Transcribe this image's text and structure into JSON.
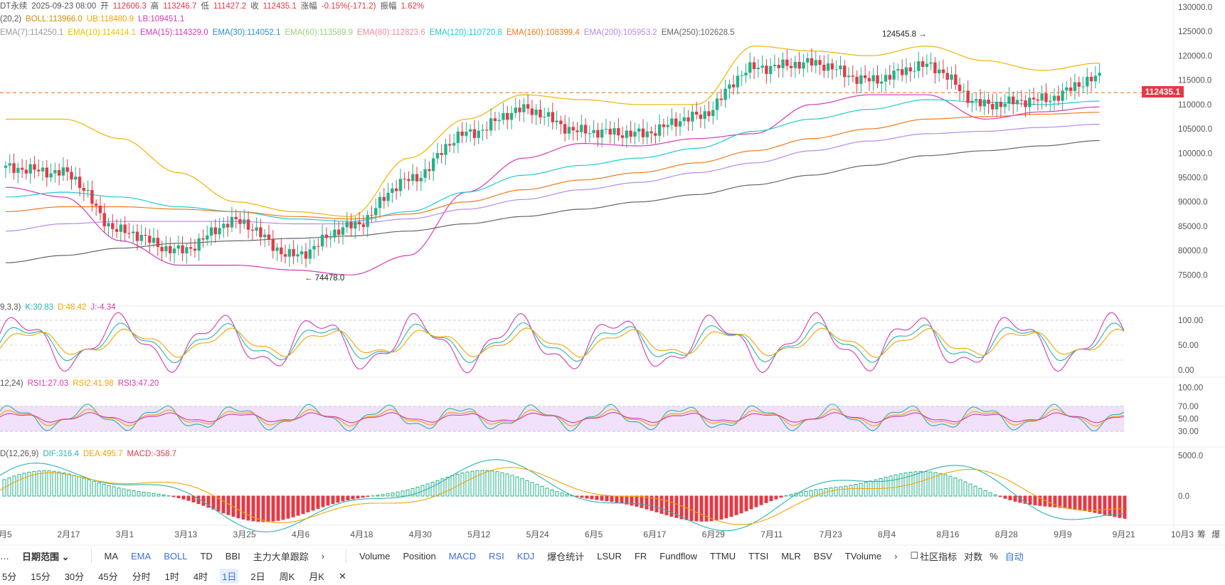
{
  "header": {
    "line1": [
      {
        "text": "DT永续",
        "color": "#555"
      },
      {
        "text": "2025-09-23 08:00",
        "color": "#555"
      },
      {
        "text": "开",
        "color": "#555"
      },
      {
        "text": "112606.3",
        "color": "#e53945"
      },
      {
        "text": "高",
        "color": "#555"
      },
      {
        "text": "113246.7",
        "color": "#e53945"
      },
      {
        "text": "低",
        "color": "#555"
      },
      {
        "text": "111427.2",
        "color": "#e53945"
      },
      {
        "text": "收",
        "color": "#555"
      },
      {
        "text": "112435.1",
        "color": "#e53945"
      },
      {
        "text": "涨幅",
        "color": "#555"
      },
      {
        "text": "-0.15%(-171.2)",
        "color": "#e53945"
      },
      {
        "text": "振幅",
        "color": "#555"
      },
      {
        "text": "1.62%",
        "color": "#e53945"
      }
    ],
    "line2": [
      {
        "text": "(20,2)",
        "color": "#555"
      },
      {
        "text": "BOLL:113966.0",
        "color": "#c89400"
      },
      {
        "text": "UB:118480.9",
        "color": "#f0a500"
      },
      {
        "text": "LB:109451.1",
        "color": "#d63ab4"
      }
    ],
    "line3": [
      {
        "text": "EMA(7):114250.1",
        "color": "#999"
      },
      {
        "text": "EMA(10):114414.1",
        "color": "#e8c200"
      },
      {
        "text": "EMA(15):114329.0",
        "color": "#d63ab4"
      },
      {
        "text": "EMA(30):114052.1",
        "color": "#2a8fd8"
      },
      {
        "text": "EMA(60):113589.9",
        "color": "#9ed07a"
      },
      {
        "text": "EMA(80):112823.6",
        "color": "#f08aa0"
      },
      {
        "text": "EMA(120):110720.8",
        "color": "#22c9d6"
      },
      {
        "text": "EMA(160):108399.4",
        "color": "#f07a1e"
      },
      {
        "text": "EMA(200):105953.2",
        "color": "#b58af0"
      },
      {
        "text": "EMA(250):102628.5",
        "color": "#666"
      }
    ]
  },
  "kdj_header": [
    {
      "text": "9,3,3)",
      "color": "#555"
    },
    {
      "text": "K:30.83",
      "color": "#2ab3b0"
    },
    {
      "text": "D:48.42",
      "color": "#f0a500"
    },
    {
      "text": "J:-4.34",
      "color": "#d63ab4"
    }
  ],
  "rsi_header": [
    {
      "text": "12,24)",
      "color": "#555"
    },
    {
      "text": "RSI1:27.03",
      "color": "#d63ab4"
    },
    {
      "text": "RSI2:41.98",
      "color": "#f0a500"
    },
    {
      "text": "RSI3:47.20",
      "color": "#d63ab4"
    }
  ],
  "macd_header": [
    {
      "text": "D(12,26,9)",
      "color": "#555"
    },
    {
      "text": "DIF:316.4",
      "color": "#2ab3b0"
    },
    {
      "text": "DEA:495.7",
      "color": "#f0a500"
    },
    {
      "text": "MACD:-358.7",
      "color": "#e53945"
    }
  ],
  "price_axis": [
    "130000.0",
    "125000.0",
    "120000.0",
    "115000.0",
    "110000.0",
    "105000.0",
    "100000.0",
    "95000.0",
    "90000.0",
    "85000.0",
    "80000.0",
    "75000.0"
  ],
  "kdj_axis": [
    "100.00",
    "50.00",
    "0.00"
  ],
  "rsi_axis": [
    "100.00",
    "70.00",
    "50.00",
    "30.00"
  ],
  "macd_axis": [
    "5000.0",
    "0.0"
  ],
  "last_price": "112435.1",
  "annotations": {
    "high": "124545.8",
    "low": "74478.0"
  },
  "x_labels": [
    "月5",
    "2月17",
    "3月1",
    "3月13",
    "3月25",
    "4月6",
    "4月18",
    "4月30",
    "5月12",
    "5月24",
    "6月5",
    "6月17",
    "6月29",
    "7月11",
    "7月23",
    "8月4",
    "8月16",
    "8月28",
    "9月9",
    "9月21",
    "10月3"
  ],
  "x_right": [
    "筹",
    "爆"
  ],
  "toolbar": {
    "left": [
      "…",
      "日期范围 ⌄"
    ],
    "main_indicators": [
      "MA",
      "EMA",
      "BOLL",
      "TD",
      "BBI",
      "主力大单跟踪"
    ],
    "sub_indicators": [
      "Volume",
      "Position",
      "MACD",
      "RSI",
      "KDJ",
      "爆仓统计",
      "LSUR",
      "FR",
      "Fundflow",
      "TTMU",
      "TTSI",
      "MLR",
      "BSV",
      "TVolume"
    ],
    "right": [
      "社区指标",
      "对数",
      "%",
      "自动"
    ]
  },
  "timeframes": [
    "5分",
    "15分",
    "30分",
    "45分",
    "分时",
    "1时",
    "4时",
    "1日",
    "2日",
    "周K",
    "月K",
    "✕"
  ],
  "selected_timeframe": "1日",
  "chart_data": {
    "type": "line",
    "title": "",
    "xlabel": "",
    "ylabel": "",
    "x": [
      "月5",
      "2月17",
      "3月1",
      "3月13",
      "3月25",
      "4月6",
      "4月18",
      "4月30",
      "5月12",
      "5月24",
      "6月5",
      "6月17",
      "6月29",
      "7月11",
      "7月23",
      "8月4",
      "8月16",
      "8月28",
      "9月9",
      "9月21"
    ],
    "ylim": [
      72000,
      131000
    ],
    "series": [
      {
        "name": "",
        "values": [
          97000,
          96000,
          84000,
          80000,
          86000,
          79000,
          85000,
          94500,
          104000,
          109000,
          104500,
          104000,
          107500,
          117500,
          118500,
          115000,
          118000,
          110000,
          111000,
          115500
        ]
      },
      {
        "name": "UB:118480.9",
        "values": [
          107000,
          107000,
          103000,
          96000,
          90000,
          88000,
          87000,
          99000,
          107000,
          112000,
          111000,
          110000,
          110000,
          122000,
          121000,
          120000,
          122000,
          119000,
          117000,
          118500
        ]
      },
      {
        "name": "LB:109451.1",
        "values": [
          93000,
          91000,
          82000,
          77000,
          77000,
          76000,
          75000,
          79000,
          92000,
          99000,
          102000,
          101500,
          103000,
          104000,
          110000,
          112000,
          112000,
          107000,
          108500,
          109500
        ]
      },
      {
        "name": "EMA(120):110720.8",
        "values": [
          91000,
          92000,
          91000,
          89000,
          88000,
          86500,
          86000,
          88000,
          92000,
          95500,
          97500,
          99000,
          101000,
          104500,
          107000,
          109000,
          111000,
          110500,
          110000,
          110700
        ]
      },
      {
        "name": "EMA(160):108399.4",
        "values": [
          88000,
          89000,
          89000,
          88500,
          88000,
          87000,
          86500,
          87500,
          90000,
          92500,
          94500,
          96000,
          98000,
          100500,
          103000,
          105000,
          107000,
          107500,
          108000,
          108400
        ]
      },
      {
        "name": "EMA(200):105953.2",
        "values": [
          84000,
          85500,
          86000,
          86000,
          86000,
          85500,
          85500,
          86500,
          88500,
          90500,
          92500,
          94000,
          96000,
          98000,
          100500,
          102500,
          104000,
          104500,
          105300,
          105950
        ]
      },
      {
        "name": "EMA(250):102628.5",
        "values": [
          77500,
          79000,
          80500,
          81500,
          82000,
          82500,
          83000,
          84000,
          85500,
          87000,
          88500,
          90000,
          91500,
          93500,
          95500,
          97500,
          99500,
          100500,
          101500,
          102600
        ]
      }
    ],
    "macd": {
      "dif": 316.4,
      "dea": 495.7,
      "macd": -358.7
    },
    "kdj": {
      "k": 30.83,
      "d": 48.42,
      "j": -4.34
    },
    "rsi": {
      "rsi1": 27.03,
      "rsi2": 41.98,
      "rsi3": 47.2
    }
  },
  "colors": {
    "up": "#22b38a",
    "down": "#e53945",
    "accent": "#3b6fd8"
  }
}
